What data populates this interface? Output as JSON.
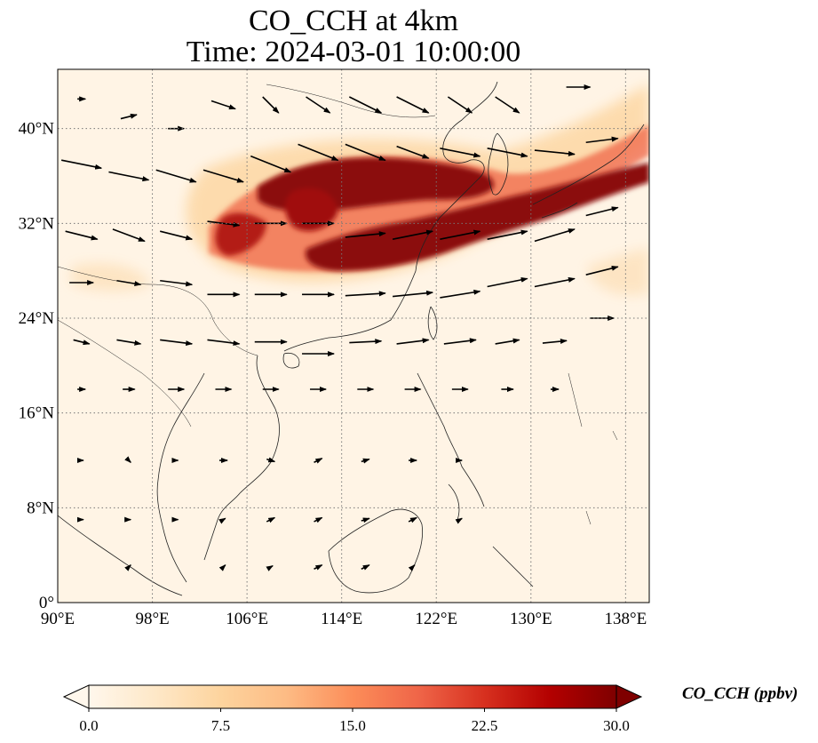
{
  "figure": {
    "title_line1": "CO_CCH at 4km",
    "title_line2": "Time: 2024-03-01 10:00:00"
  },
  "map": {
    "lon_range": [
      90,
      140
    ],
    "lat_range": [
      0,
      45
    ],
    "lon_ticks": [
      90,
      98,
      106,
      114,
      122,
      130,
      138
    ],
    "lon_tick_labels": [
      "90°E",
      "98°E",
      "106°E",
      "114°E",
      "122°E",
      "130°E",
      "138°E"
    ],
    "lat_ticks": [
      0,
      8,
      16,
      24,
      32,
      40
    ],
    "lat_tick_labels": [
      "0°",
      "8°N",
      "16°N",
      "24°N",
      "32°N",
      "40°N"
    ],
    "gridlines": true,
    "gridline_style": "dotted"
  },
  "colorbar": {
    "label": "CO_CCH (ppbv)",
    "min": 0.0,
    "max": 30.0,
    "ticks": [
      0.0,
      7.5,
      15.0,
      22.5,
      30.0
    ],
    "tick_labels": [
      "0.0",
      "7.5",
      "15.0",
      "22.5",
      "30.0"
    ],
    "colormap": "OrRd",
    "extend": "both",
    "colors": [
      "#fff7ec",
      "#fee8c8",
      "#fdd49e",
      "#fdbb84",
      "#fc8d59",
      "#ef6548",
      "#d7301f",
      "#b30000",
      "#7f0000"
    ]
  },
  "plume": {
    "description_values_ppbv": "peak ~30 along 27-38N, 106-136E",
    "core_points": [
      {
        "lon": 104,
        "lat": 30.5,
        "value": 20
      },
      {
        "lon": 108,
        "lat": 34.5,
        "value": 26
      },
      {
        "lon": 112,
        "lat": 35.8,
        "value": 30
      },
      {
        "lon": 116,
        "lat": 35.5,
        "value": 30
      },
      {
        "lon": 120,
        "lat": 34.8,
        "value": 30
      },
      {
        "lon": 124,
        "lat": 34.0,
        "value": 28
      },
      {
        "lon": 116,
        "lat": 29.5,
        "value": 30
      },
      {
        "lon": 120,
        "lat": 30.5,
        "value": 30
      },
      {
        "lon": 124,
        "lat": 31.8,
        "value": 30
      },
      {
        "lon": 128,
        "lat": 33.0,
        "value": 27
      },
      {
        "lon": 132,
        "lat": 34.5,
        "value": 22
      },
      {
        "lon": 136,
        "lat": 37.0,
        "value": 14
      },
      {
        "lon": 139,
        "lat": 41.0,
        "value": 10
      }
    ]
  },
  "wind_vectors": [
    {
      "lon": 92,
      "lat": 42.5,
      "u": 1,
      "v": 0
    },
    {
      "lon": 96,
      "lat": 41,
      "u": 2,
      "v": 0.5
    },
    {
      "lon": 100,
      "lat": 40,
      "u": 2,
      "v": 0
    },
    {
      "lon": 104,
      "lat": 42,
      "u": 3,
      "v": -1
    },
    {
      "lon": 108,
      "lat": 42,
      "u": 2,
      "v": -2
    },
    {
      "lon": 112,
      "lat": 42,
      "u": 3,
      "v": -2
    },
    {
      "lon": 116,
      "lat": 42,
      "u": 4,
      "v": -2
    },
    {
      "lon": 120,
      "lat": 42,
      "u": 4,
      "v": -2
    },
    {
      "lon": 124,
      "lat": 42,
      "u": 3,
      "v": -2
    },
    {
      "lon": 128,
      "lat": 42,
      "u": 3,
      "v": -2
    },
    {
      "lon": 134,
      "lat": 43.5,
      "u": 3,
      "v": 0
    },
    {
      "lon": 92,
      "lat": 37,
      "u": 5,
      "v": -1
    },
    {
      "lon": 96,
      "lat": 36,
      "u": 5,
      "v": -1
    },
    {
      "lon": 100,
      "lat": 36,
      "u": 5,
      "v": -1.5
    },
    {
      "lon": 104,
      "lat": 36,
      "u": 5,
      "v": -1.5
    },
    {
      "lon": 108,
      "lat": 37,
      "u": 5,
      "v": -2
    },
    {
      "lon": 112,
      "lat": 38,
      "u": 5,
      "v": -2
    },
    {
      "lon": 116,
      "lat": 38,
      "u": 5,
      "v": -2
    },
    {
      "lon": 120,
      "lat": 38,
      "u": 4,
      "v": -1.5
    },
    {
      "lon": 124,
      "lat": 38,
      "u": 5,
      "v": -1
    },
    {
      "lon": 128,
      "lat": 38,
      "u": 5,
      "v": -1
    },
    {
      "lon": 132,
      "lat": 38,
      "u": 5,
      "v": -0.5
    },
    {
      "lon": 136,
      "lat": 39,
      "u": 4,
      "v": 0.5
    },
    {
      "lon": 92,
      "lat": 31,
      "u": 4,
      "v": -1
    },
    {
      "lon": 96,
      "lat": 31,
      "u": 4,
      "v": -1.5
    },
    {
      "lon": 100,
      "lat": 31,
      "u": 4,
      "v": -1
    },
    {
      "lon": 104,
      "lat": 32,
      "u": 4,
      "v": -0.5
    },
    {
      "lon": 108,
      "lat": 32,
      "u": 4,
      "v": 0
    },
    {
      "lon": 112,
      "lat": 32,
      "u": 4,
      "v": 0
    },
    {
      "lon": 116,
      "lat": 31,
      "u": 5,
      "v": 0.5
    },
    {
      "lon": 120,
      "lat": 31,
      "u": 5,
      "v": 1
    },
    {
      "lon": 124,
      "lat": 31,
      "u": 5,
      "v": 1
    },
    {
      "lon": 128,
      "lat": 31,
      "u": 5,
      "v": 1
    },
    {
      "lon": 132,
      "lat": 31,
      "u": 5,
      "v": 1.5
    },
    {
      "lon": 136,
      "lat": 33,
      "u": 4,
      "v": 1
    },
    {
      "lon": 92,
      "lat": 27,
      "u": 3,
      "v": 0
    },
    {
      "lon": 96,
      "lat": 27,
      "u": 3,
      "v": -0.5
    },
    {
      "lon": 100,
      "lat": 27,
      "u": 4,
      "v": -0.5
    },
    {
      "lon": 104,
      "lat": 26,
      "u": 4,
      "v": 0
    },
    {
      "lon": 108,
      "lat": 26,
      "u": 4,
      "v": 0
    },
    {
      "lon": 112,
      "lat": 26,
      "u": 4,
      "v": 0
    },
    {
      "lon": 116,
      "lat": 26,
      "u": 5,
      "v": 0.3
    },
    {
      "lon": 120,
      "lat": 26,
      "u": 5,
      "v": 0.5
    },
    {
      "lon": 124,
      "lat": 26,
      "u": 5,
      "v": 0.8
    },
    {
      "lon": 128,
      "lat": 27,
      "u": 5,
      "v": 1
    },
    {
      "lon": 132,
      "lat": 27,
      "u": 5,
      "v": 1
    },
    {
      "lon": 136,
      "lat": 28,
      "u": 4,
      "v": 1
    },
    {
      "lon": 92,
      "lat": 22,
      "u": 2,
      "v": -0.5
    },
    {
      "lon": 96,
      "lat": 22,
      "u": 3,
      "v": -0.5
    },
    {
      "lon": 100,
      "lat": 22,
      "u": 4,
      "v": -0.5
    },
    {
      "lon": 104,
      "lat": 22,
      "u": 4,
      "v": -0.5
    },
    {
      "lon": 108,
      "lat": 22,
      "u": 4,
      "v": 0
    },
    {
      "lon": 112,
      "lat": 21,
      "u": 4,
      "v": 0
    },
    {
      "lon": 116,
      "lat": 22,
      "u": 4,
      "v": 0.2
    },
    {
      "lon": 120,
      "lat": 22,
      "u": 4,
      "v": 0.5
    },
    {
      "lon": 124,
      "lat": 22,
      "u": 4,
      "v": 0.5
    },
    {
      "lon": 128,
      "lat": 22,
      "u": 3,
      "v": 0.5
    },
    {
      "lon": 132,
      "lat": 22,
      "u": 3,
      "v": 0.3
    },
    {
      "lon": 136,
      "lat": 24,
      "u": 3,
      "v": 0
    },
    {
      "lon": 92,
      "lat": 18,
      "u": 1,
      "v": 0
    },
    {
      "lon": 96,
      "lat": 18,
      "u": 1.5,
      "v": 0
    },
    {
      "lon": 100,
      "lat": 18,
      "u": 2,
      "v": 0
    },
    {
      "lon": 104,
      "lat": 18,
      "u": 2,
      "v": 0
    },
    {
      "lon": 108,
      "lat": 18,
      "u": 2,
      "v": 0
    },
    {
      "lon": 112,
      "lat": 18,
      "u": 2,
      "v": 0
    },
    {
      "lon": 116,
      "lat": 18,
      "u": 2,
      "v": 0
    },
    {
      "lon": 120,
      "lat": 18,
      "u": 2,
      "v": 0
    },
    {
      "lon": 124,
      "lat": 18,
      "u": 2,
      "v": 0
    },
    {
      "lon": 128,
      "lat": 18,
      "u": 1.5,
      "v": 0
    },
    {
      "lon": 132,
      "lat": 18,
      "u": 1,
      "v": 0
    },
    {
      "lon": 92,
      "lat": 12,
      "u": 0.5,
      "v": 0
    },
    {
      "lon": 96,
      "lat": 12,
      "u": 0.5,
      "v": -0.5
    },
    {
      "lon": 100,
      "lat": 12,
      "u": 0.5,
      "v": 0
    },
    {
      "lon": 104,
      "lat": 12,
      "u": 1,
      "v": 0
    },
    {
      "lon": 108,
      "lat": 12,
      "u": 1,
      "v": -0.3
    },
    {
      "lon": 112,
      "lat": 12,
      "u": 1,
      "v": 0.5
    },
    {
      "lon": 116,
      "lat": 12,
      "u": 1,
      "v": 0.3
    },
    {
      "lon": 120,
      "lat": 12,
      "u": 1,
      "v": 0
    },
    {
      "lon": 124,
      "lat": 12,
      "u": 0.5,
      "v": 0
    },
    {
      "lon": 92,
      "lat": 7,
      "u": 0.5,
      "v": 0
    },
    {
      "lon": 96,
      "lat": 7,
      "u": 0.5,
      "v": 0
    },
    {
      "lon": 100,
      "lat": 7,
      "u": 0.5,
      "v": 0
    },
    {
      "lon": 104,
      "lat": 7,
      "u": 0.5,
      "v": 0.3
    },
    {
      "lon": 108,
      "lat": 7,
      "u": 1,
      "v": 0.5
    },
    {
      "lon": 112,
      "lat": 7,
      "u": 1,
      "v": 0.5
    },
    {
      "lon": 116,
      "lat": 7,
      "u": 1,
      "v": 0.3
    },
    {
      "lon": 120,
      "lat": 7,
      "u": 1,
      "v": 0.5
    },
    {
      "lon": 124,
      "lat": 7,
      "u": 0.5,
      "v": 0.3
    },
    {
      "lon": 96,
      "lat": 3,
      "u": 0.5,
      "v": 0.5
    },
    {
      "lon": 104,
      "lat": 3,
      "u": 0.5,
      "v": 0.5
    },
    {
      "lon": 108,
      "lat": 3,
      "u": 0.5,
      "v": 0.3
    },
    {
      "lon": 112,
      "lat": 3,
      "u": 1,
      "v": 0.5
    },
    {
      "lon": 116,
      "lat": 3,
      "u": 1,
      "v": 0.5
    },
    {
      "lon": 120,
      "lat": 3,
      "u": 0.5,
      "v": 0.5
    }
  ]
}
